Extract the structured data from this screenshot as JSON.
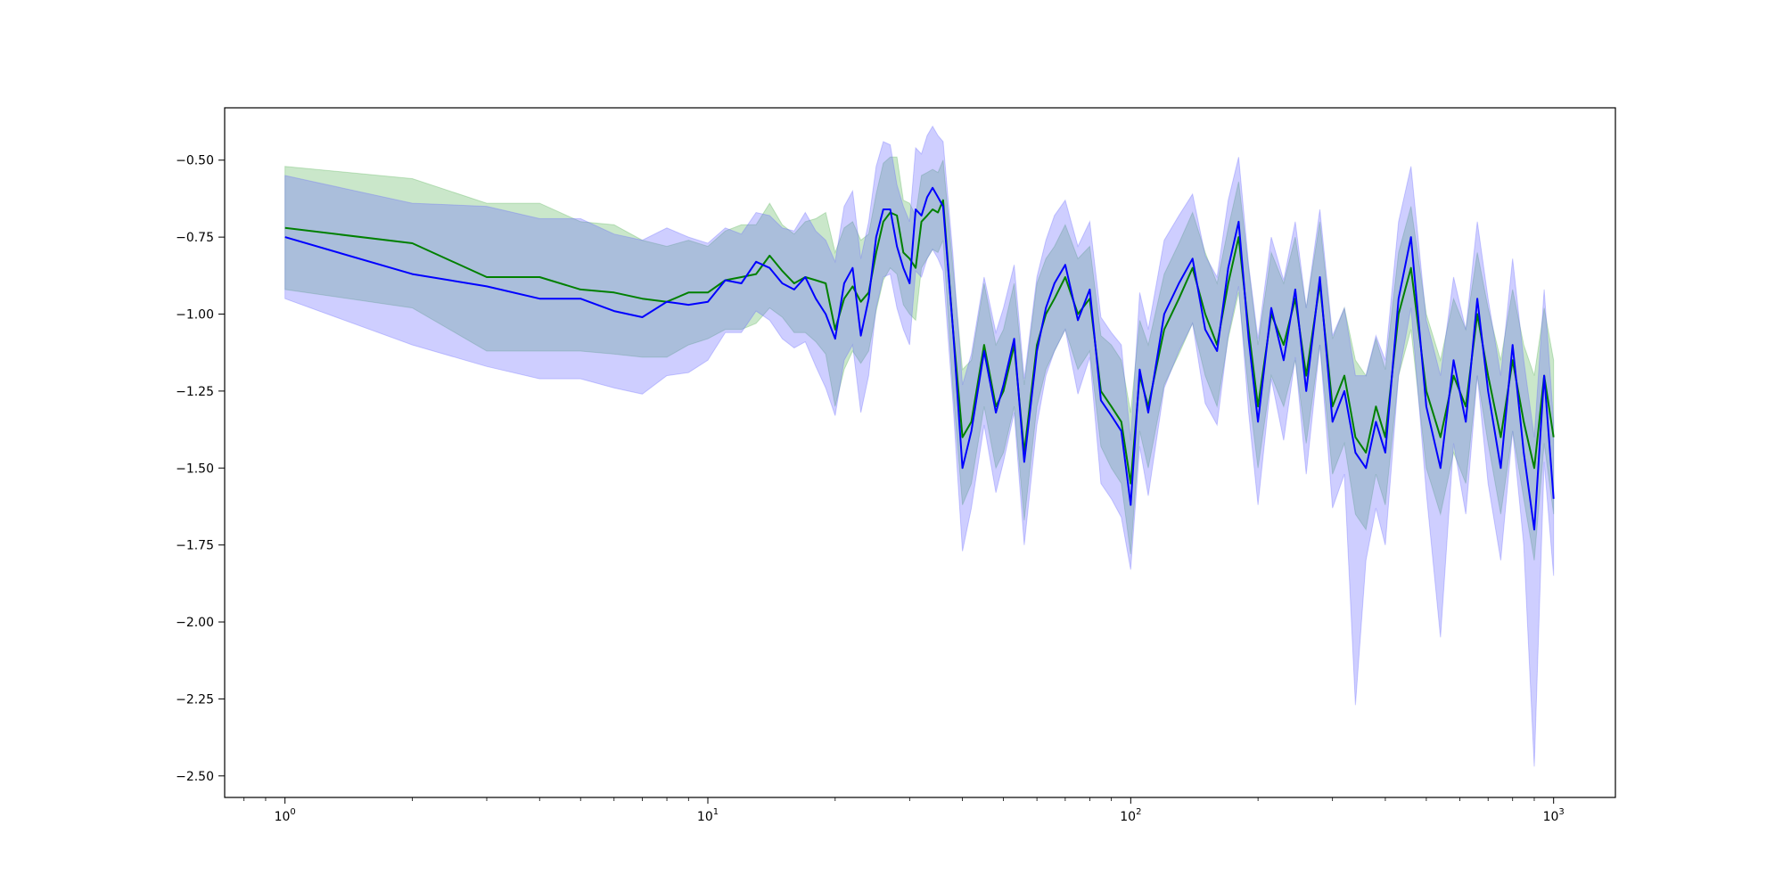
{
  "chart_data": {
    "type": "line",
    "title": "",
    "xlabel": "",
    "ylabel": "",
    "x_scale": "log",
    "xlim": [
      0.72,
      1400
    ],
    "ylim": [
      -2.57,
      -0.33
    ],
    "grid": false,
    "legend": "none",
    "x_ticks": [
      {
        "value": 1,
        "base": "10",
        "exp": "0"
      },
      {
        "value": 10,
        "base": "10",
        "exp": "1"
      },
      {
        "value": 100,
        "base": "10",
        "exp": "2"
      },
      {
        "value": 1000,
        "base": "10",
        "exp": "3"
      }
    ],
    "y_ticks": [
      {
        "value": -0.5,
        "label": "−0.50"
      },
      {
        "value": -0.75,
        "label": "−0.75"
      },
      {
        "value": -1.0,
        "label": "−1.00"
      },
      {
        "value": -1.25,
        "label": "−1.25"
      },
      {
        "value": -1.5,
        "label": "−1.50"
      },
      {
        "value": -1.75,
        "label": "−1.75"
      },
      {
        "value": -2.0,
        "label": "−2.00"
      },
      {
        "value": -2.25,
        "label": "−2.25"
      },
      {
        "value": -2.5,
        "label": "−2.50"
      }
    ],
    "series": [
      {
        "color": "#008000",
        "band_color": "#2ca02c",
        "band_opacity": 0.25,
        "x": [
          1,
          2,
          3,
          4,
          5,
          6,
          7,
          8,
          9,
          10,
          11,
          12,
          13,
          14,
          15,
          16,
          17,
          18,
          19,
          20,
          21,
          22,
          23,
          24,
          25,
          26,
          27,
          28,
          29,
          30,
          31,
          32,
          33,
          34,
          35,
          36,
          38,
          40,
          42,
          45,
          48,
          50,
          53,
          56,
          60,
          63,
          66,
          70,
          75,
          80,
          85,
          90,
          95,
          100,
          105,
          110,
          120,
          130,
          140,
          150,
          160,
          170,
          180,
          190,
          200,
          215,
          230,
          245,
          260,
          280,
          300,
          320,
          340,
          360,
          380,
          400,
          430,
          460,
          500,
          540,
          580,
          620,
          660,
          700,
          750,
          800,
          850,
          900,
          950,
          1000
        ],
        "y": [
          -0.72,
          -0.77,
          -0.88,
          -0.88,
          -0.92,
          -0.93,
          -0.95,
          -0.96,
          -0.93,
          -0.93,
          -0.89,
          -0.88,
          -0.87,
          -0.81,
          -0.86,
          -0.9,
          -0.88,
          -0.89,
          -0.9,
          -1.05,
          -0.95,
          -0.91,
          -0.96,
          -0.93,
          -0.8,
          -0.7,
          -0.67,
          -0.68,
          -0.8,
          -0.82,
          -0.85,
          -0.7,
          -0.68,
          -0.66,
          -0.67,
          -0.63,
          -1.05,
          -1.4,
          -1.35,
          -1.1,
          -1.3,
          -1.25,
          -1.1,
          -1.45,
          -1.1,
          -1.0,
          -0.95,
          -0.88,
          -1.0,
          -0.95,
          -1.25,
          -1.3,
          -1.35,
          -1.55,
          -1.2,
          -1.3,
          -1.05,
          -0.95,
          -0.85,
          -1.0,
          -1.1,
          -0.9,
          -0.75,
          -1.05,
          -1.3,
          -1.0,
          -1.1,
          -0.95,
          -1.2,
          -0.9,
          -1.3,
          -1.2,
          -1.4,
          -1.45,
          -1.3,
          -1.4,
          -1.0,
          -0.85,
          -1.25,
          -1.4,
          -1.2,
          -1.3,
          -1.0,
          -1.2,
          -1.4,
          -1.15,
          -1.35,
          -1.5,
          -1.2,
          -1.4
        ],
        "band_low": [
          -0.92,
          -0.98,
          -1.12,
          -1.12,
          -1.12,
          -1.13,
          -1.14,
          -1.14,
          -1.1,
          -1.08,
          -1.05,
          -1.05,
          -1.03,
          -0.98,
          -1.01,
          -1.06,
          -1.06,
          -1.09,
          -1.13,
          -1.3,
          -1.18,
          -1.12,
          -1.16,
          -1.12,
          -0.99,
          -0.89,
          -0.85,
          -0.87,
          -0.97,
          -1.0,
          -1.02,
          -0.85,
          -0.82,
          -0.79,
          -0.8,
          -0.76,
          -1.25,
          -1.62,
          -1.55,
          -1.3,
          -1.5,
          -1.45,
          -1.3,
          -1.67,
          -1.3,
          -1.18,
          -1.12,
          -1.05,
          -1.18,
          -1.12,
          -1.43,
          -1.5,
          -1.55,
          -1.78,
          -1.38,
          -1.5,
          -1.23,
          -1.13,
          -1.03,
          -1.2,
          -1.3,
          -1.08,
          -0.93,
          -1.25,
          -1.5,
          -1.2,
          -1.3,
          -1.15,
          -1.42,
          -1.1,
          -1.52,
          -1.42,
          -1.65,
          -1.7,
          -1.52,
          -1.62,
          -1.2,
          -1.05,
          -1.5,
          -1.65,
          -1.45,
          -1.55,
          -1.2,
          -1.42,
          -1.65,
          -1.38,
          -1.6,
          -1.8,
          -1.42,
          -1.65
        ],
        "band_high": [
          -0.52,
          -0.56,
          -0.64,
          -0.64,
          -0.7,
          -0.71,
          -0.76,
          -0.78,
          -0.76,
          -0.78,
          -0.73,
          -0.71,
          -0.71,
          -0.64,
          -0.71,
          -0.74,
          -0.7,
          -0.69,
          -0.67,
          -0.8,
          -0.72,
          -0.7,
          -0.76,
          -0.74,
          -0.61,
          -0.51,
          -0.49,
          -0.49,
          -0.63,
          -0.64,
          -0.68,
          -0.55,
          -0.54,
          -0.53,
          -0.54,
          -0.5,
          -0.85,
          -1.18,
          -1.15,
          -0.9,
          -1.1,
          -1.05,
          -0.9,
          -1.23,
          -0.9,
          -0.82,
          -0.78,
          -0.71,
          -0.82,
          -0.78,
          -1.07,
          -1.1,
          -1.15,
          -1.32,
          -1.02,
          -1.1,
          -0.87,
          -0.77,
          -0.67,
          -0.8,
          -0.9,
          -0.72,
          -0.57,
          -0.85,
          -1.1,
          -0.8,
          -0.9,
          -0.75,
          -0.98,
          -0.7,
          -1.08,
          -0.98,
          -1.15,
          -1.2,
          -1.08,
          -1.18,
          -0.8,
          -0.65,
          -1.0,
          -1.15,
          -0.95,
          -1.05,
          -0.8,
          -0.98,
          -1.15,
          -0.92,
          -1.1,
          -1.2,
          -0.98,
          -1.15
        ]
      },
      {
        "color": "#0000ff",
        "band_color": "#6666ff",
        "band_opacity": 0.32,
        "x": [
          1,
          2,
          3,
          4,
          5,
          6,
          7,
          8,
          9,
          10,
          11,
          12,
          13,
          14,
          15,
          16,
          17,
          18,
          19,
          20,
          21,
          22,
          23,
          24,
          25,
          26,
          27,
          28,
          29,
          30,
          31,
          32,
          33,
          34,
          35,
          36,
          38,
          40,
          42,
          45,
          48,
          50,
          53,
          56,
          60,
          63,
          66,
          70,
          75,
          80,
          85,
          90,
          95,
          100,
          105,
          110,
          120,
          130,
          140,
          150,
          160,
          170,
          180,
          190,
          200,
          215,
          230,
          245,
          260,
          280,
          300,
          320,
          340,
          360,
          380,
          400,
          430,
          460,
          500,
          540,
          580,
          620,
          660,
          700,
          750,
          800,
          850,
          900,
          950,
          1000
        ],
        "y": [
          -0.75,
          -0.87,
          -0.91,
          -0.95,
          -0.95,
          -0.99,
          -1.01,
          -0.96,
          -0.97,
          -0.96,
          -0.89,
          -0.9,
          -0.83,
          -0.85,
          -0.9,
          -0.92,
          -0.88,
          -0.95,
          -1.0,
          -1.08,
          -0.9,
          -0.85,
          -1.07,
          -0.95,
          -0.75,
          -0.66,
          -0.66,
          -0.78,
          -0.85,
          -0.9,
          -0.66,
          -0.68,
          -0.62,
          -0.59,
          -0.62,
          -0.65,
          -1.05,
          -1.5,
          -1.38,
          -1.12,
          -1.32,
          -1.23,
          -1.08,
          -1.48,
          -1.12,
          -0.98,
          -0.9,
          -0.84,
          -1.02,
          -0.92,
          -1.28,
          -1.33,
          -1.38,
          -1.62,
          -1.18,
          -1.32,
          -1.0,
          -0.9,
          -0.82,
          -1.05,
          -1.12,
          -0.85,
          -0.7,
          -1.08,
          -1.35,
          -0.98,
          -1.15,
          -0.92,
          -1.25,
          -0.88,
          -1.35,
          -1.25,
          -1.45,
          -1.5,
          -1.35,
          -1.45,
          -0.95,
          -0.75,
          -1.3,
          -1.5,
          -1.15,
          -1.35,
          -0.95,
          -1.25,
          -1.5,
          -1.1,
          -1.45,
          -1.7,
          -1.2,
          -1.6
        ],
        "band_low": [
          -0.95,
          -1.1,
          -1.17,
          -1.21,
          -1.21,
          -1.24,
          -1.26,
          -1.2,
          -1.19,
          -1.15,
          -1.06,
          -1.06,
          -0.99,
          -1.02,
          -1.08,
          -1.11,
          -1.09,
          -1.17,
          -1.24,
          -1.33,
          -1.15,
          -1.1,
          -1.32,
          -1.2,
          -0.98,
          -0.88,
          -0.87,
          -0.98,
          -1.05,
          -1.1,
          -0.86,
          -0.88,
          -0.82,
          -0.79,
          -0.82,
          -0.86,
          -1.29,
          -1.77,
          -1.63,
          -1.36,
          -1.58,
          -1.48,
          -1.32,
          -1.75,
          -1.36,
          -1.2,
          -1.12,
          -1.05,
          -1.26,
          -1.14,
          -1.55,
          -1.6,
          -1.66,
          -1.83,
          -1.43,
          -1.59,
          -1.24,
          -1.12,
          -1.03,
          -1.29,
          -1.36,
          -1.07,
          -0.91,
          -1.32,
          -1.62,
          -1.21,
          -1.41,
          -1.14,
          -1.52,
          -1.1,
          -1.63,
          -1.52,
          -2.27,
          -1.8,
          -1.63,
          -1.75,
          -1.2,
          -0.98,
          -1.58,
          -2.05,
          -1.42,
          -1.65,
          -1.2,
          -1.55,
          -1.8,
          -1.38,
          -1.75,
          -2.47,
          -1.48,
          -1.85
        ],
        "band_high": [
          -0.55,
          -0.64,
          -0.65,
          -0.69,
          -0.69,
          -0.74,
          -0.76,
          -0.72,
          -0.75,
          -0.77,
          -0.72,
          -0.74,
          -0.67,
          -0.68,
          -0.72,
          -0.73,
          -0.67,
          -0.73,
          -0.76,
          -0.83,
          -0.65,
          -0.6,
          -0.82,
          -0.7,
          -0.52,
          -0.44,
          -0.45,
          -0.58,
          -0.65,
          -0.7,
          -0.46,
          -0.48,
          -0.42,
          -0.39,
          -0.42,
          -0.44,
          -0.81,
          -1.23,
          -1.13,
          -0.88,
          -1.06,
          -0.98,
          -0.84,
          -1.21,
          -0.88,
          -0.76,
          -0.68,
          -0.63,
          -0.78,
          -0.7,
          -1.01,
          -1.06,
          -1.1,
          -1.41,
          -0.93,
          -1.05,
          -0.76,
          -0.68,
          -0.61,
          -0.81,
          -0.88,
          -0.63,
          -0.49,
          -0.84,
          -1.08,
          -0.75,
          -0.89,
          -0.7,
          -0.98,
          -0.66,
          -1.07,
          -0.98,
          -1.2,
          -1.2,
          -1.07,
          -1.15,
          -0.7,
          -0.52,
          -1.02,
          -1.2,
          -0.88,
          -1.05,
          -0.7,
          -0.95,
          -1.2,
          -0.82,
          -1.15,
          -1.4,
          -0.92,
          -1.35
        ]
      }
    ]
  }
}
